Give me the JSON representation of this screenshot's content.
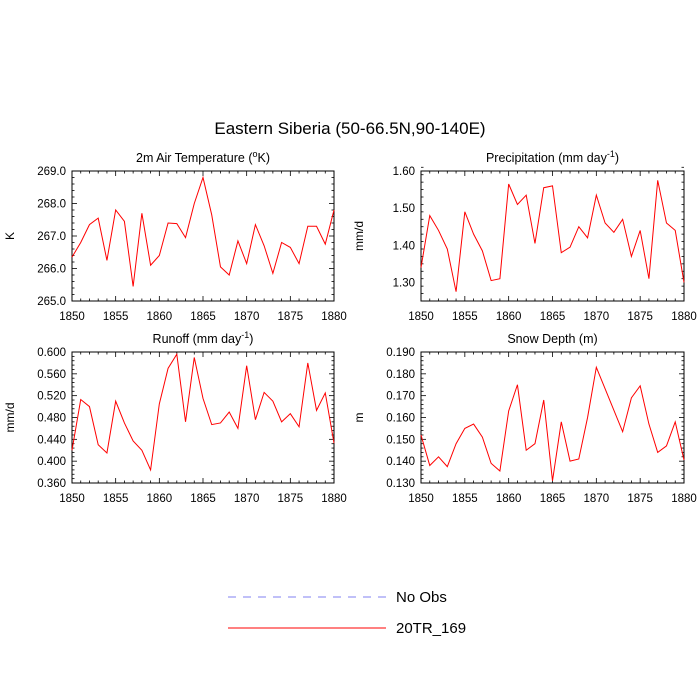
{
  "figure": {
    "title": "Eastern Siberia (50-66.5N,90-140E)"
  },
  "legend": {
    "entries": [
      {
        "label": "No Obs",
        "style": "dashed",
        "color": "#8080f0"
      },
      {
        "label": "20TR_169",
        "style": "solid",
        "color": "#ff0000"
      }
    ]
  },
  "chart_data": [
    {
      "type": "line",
      "title_main": "2m Air Temperature (",
      "title_sup": "o",
      "title_tail": "K)",
      "xlabel": "",
      "ylabel": "K",
      "xlim": [
        1850,
        1880
      ],
      "ylim": [
        265.0,
        269.0
      ],
      "xticks": [
        1850,
        1855,
        1860,
        1865,
        1870,
        1875,
        1880
      ],
      "yticks": [
        "265.0",
        "266.0",
        "267.0",
        "268.0",
        "269.0"
      ],
      "ytick_values": [
        265.0,
        266.0,
        267.0,
        268.0,
        269.0
      ],
      "grid": false,
      "series": [
        {
          "name": "20TR_169",
          "color": "#ff0000",
          "x": [
            1850,
            1851,
            1852,
            1853,
            1854,
            1855,
            1856,
            1857,
            1858,
            1859,
            1860,
            1861,
            1862,
            1863,
            1864,
            1865,
            1866,
            1867,
            1868,
            1869,
            1870,
            1871,
            1872,
            1873,
            1874,
            1875,
            1876,
            1877,
            1878,
            1879,
            1880
          ],
          "y": [
            266.35,
            266.8,
            267.35,
            267.55,
            266.25,
            267.8,
            267.45,
            265.45,
            267.7,
            266.1,
            266.4,
            267.4,
            267.38,
            266.95,
            268.0,
            268.8,
            267.65,
            266.05,
            265.8,
            266.85,
            266.15,
            267.35,
            266.7,
            265.85,
            266.8,
            266.65,
            266.15,
            267.3,
            267.3,
            266.75,
            267.8
          ]
        }
      ]
    },
    {
      "type": "line",
      "title_main": "Precipitation (mm day",
      "title_sup": "-1",
      "title_tail": ")",
      "xlabel": "",
      "ylabel": "mm/d",
      "xlim": [
        1850,
        1880
      ],
      "ylim": [
        1.25,
        1.6
      ],
      "xticks": [
        1850,
        1855,
        1860,
        1865,
        1870,
        1875,
        1880
      ],
      "yticks": [
        "1.30",
        "1.40",
        "1.50",
        "1.60"
      ],
      "ytick_values": [
        1.3,
        1.4,
        1.5,
        1.6
      ],
      "grid": false,
      "series": [
        {
          "name": "20TR_169",
          "color": "#ff0000",
          "x": [
            1850,
            1851,
            1852,
            1853,
            1854,
            1855,
            1856,
            1857,
            1858,
            1859,
            1860,
            1861,
            1862,
            1863,
            1864,
            1865,
            1866,
            1867,
            1868,
            1869,
            1870,
            1871,
            1872,
            1873,
            1874,
            1875,
            1876,
            1877,
            1878,
            1879,
            1880
          ],
          "y": [
            1.34,
            1.48,
            1.44,
            1.39,
            1.275,
            1.49,
            1.43,
            1.385,
            1.305,
            1.31,
            1.565,
            1.51,
            1.535,
            1.405,
            1.555,
            1.56,
            1.38,
            1.395,
            1.45,
            1.42,
            1.535,
            1.46,
            1.435,
            1.47,
            1.37,
            1.44,
            1.31,
            1.575,
            1.46,
            1.44,
            1.3
          ]
        }
      ]
    },
    {
      "type": "line",
      "title_main": "Runoff (mm day",
      "title_sup": "-1",
      "title_tail": ")",
      "xlabel": "",
      "ylabel": "mm/d",
      "xlim": [
        1850,
        1880
      ],
      "ylim": [
        0.36,
        0.6
      ],
      "xticks": [
        1850,
        1855,
        1860,
        1865,
        1870,
        1875,
        1880
      ],
      "yticks": [
        "0.360",
        "0.400",
        "0.440",
        "0.480",
        "0.520",
        "0.560",
        "0.600"
      ],
      "ytick_values": [
        0.36,
        0.4,
        0.44,
        0.48,
        0.52,
        0.56,
        0.6
      ],
      "grid": false,
      "series": [
        {
          "name": "20TR_169",
          "color": "#ff0000",
          "x": [
            1850,
            1851,
            1852,
            1853,
            1854,
            1855,
            1856,
            1857,
            1858,
            1859,
            1860,
            1861,
            1862,
            1863,
            1864,
            1865,
            1866,
            1867,
            1868,
            1869,
            1870,
            1871,
            1872,
            1873,
            1874,
            1875,
            1876,
            1877,
            1878,
            1879,
            1880
          ],
          "y": [
            0.42,
            0.513,
            0.5,
            0.43,
            0.415,
            0.51,
            0.47,
            0.437,
            0.42,
            0.384,
            0.505,
            0.57,
            0.596,
            0.472,
            0.59,
            0.515,
            0.467,
            0.47,
            0.49,
            0.46,
            0.575,
            0.476,
            0.526,
            0.51,
            0.472,
            0.487,
            0.463,
            0.58,
            0.493,
            0.525,
            0.433
          ]
        }
      ]
    },
    {
      "type": "line",
      "title_main": "Snow Depth (m)",
      "title_sup": "",
      "title_tail": "",
      "xlabel": "",
      "ylabel": "m",
      "xlim": [
        1850,
        1880
      ],
      "ylim": [
        0.13,
        0.19
      ],
      "xticks": [
        1850,
        1855,
        1860,
        1865,
        1870,
        1875,
        1880
      ],
      "yticks": [
        "0.130",
        "0.140",
        "0.150",
        "0.160",
        "0.170",
        "0.180",
        "0.190"
      ],
      "ytick_values": [
        0.13,
        0.14,
        0.15,
        0.16,
        0.17,
        0.18,
        0.19
      ],
      "grid": false,
      "series": [
        {
          "name": "20TR_169",
          "color": "#ff0000",
          "x": [
            1850,
            1851,
            1852,
            1853,
            1854,
            1855,
            1856,
            1857,
            1858,
            1859,
            1860,
            1861,
            1862,
            1863,
            1864,
            1865,
            1866,
            1867,
            1868,
            1869,
            1870,
            1873,
            1874,
            1875,
            1876,
            1877,
            1878,
            1879,
            1880
          ],
          "y": [
            0.152,
            0.138,
            0.142,
            0.1375,
            0.148,
            0.155,
            0.157,
            0.151,
            0.139,
            0.1355,
            0.163,
            0.175,
            0.145,
            0.148,
            0.168,
            0.131,
            0.158,
            0.14,
            0.141,
            0.16,
            0.183,
            0.1535,
            0.169,
            0.1745,
            0.157,
            0.144,
            0.147,
            0.158,
            0.1405
          ]
        }
      ]
    }
  ]
}
